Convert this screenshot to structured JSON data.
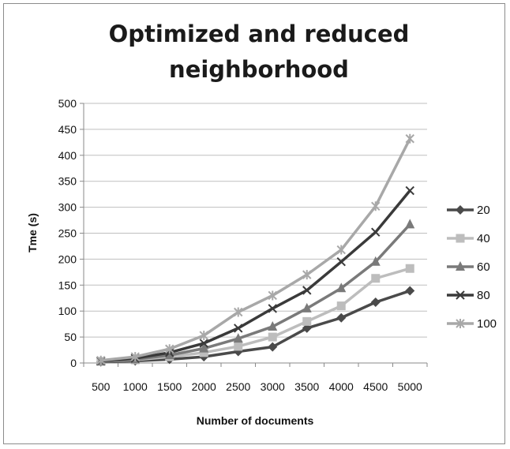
{
  "chart_data": {
    "type": "line",
    "title_lines": [
      "Optimized and reduced",
      "neighborhood"
    ],
    "xlabel": "Number of documents",
    "ylabel": "Tme (s)",
    "categories": [
      "500",
      "1000",
      "1500",
      "2000",
      "2500",
      "3000",
      "3500",
      "4000",
      "4500",
      "5000"
    ],
    "ylim": [
      0,
      500
    ],
    "yticks": [
      0,
      50,
      100,
      150,
      200,
      250,
      300,
      350,
      400,
      450,
      500
    ],
    "grid": "horizontal",
    "legend_position": "right",
    "series": [
      {
        "name": "20",
        "color": "#4a4a4a",
        "marker": "diamond",
        "values": [
          2,
          4,
          7,
          12,
          22,
          31,
          67,
          87,
          117,
          139
        ]
      },
      {
        "name": "40",
        "color": "#bdbdbd",
        "marker": "square",
        "values": [
          3,
          6,
          12,
          20,
          32,
          50,
          80,
          110,
          163,
          182
        ]
      },
      {
        "name": "60",
        "color": "#7a7a7a",
        "marker": "triangle",
        "values": [
          3,
          7,
          15,
          28,
          47,
          70,
          105,
          144,
          195,
          267
        ]
      },
      {
        "name": "80",
        "color": "#3a3a3a",
        "marker": "x",
        "values": [
          4,
          9,
          20,
          38,
          67,
          105,
          140,
          195,
          252,
          332
        ]
      },
      {
        "name": "100",
        "color": "#a8a8a8",
        "marker": "star",
        "values": [
          5,
          12,
          27,
          53,
          98,
          130,
          170,
          218,
          302,
          432
        ]
      }
    ]
  }
}
